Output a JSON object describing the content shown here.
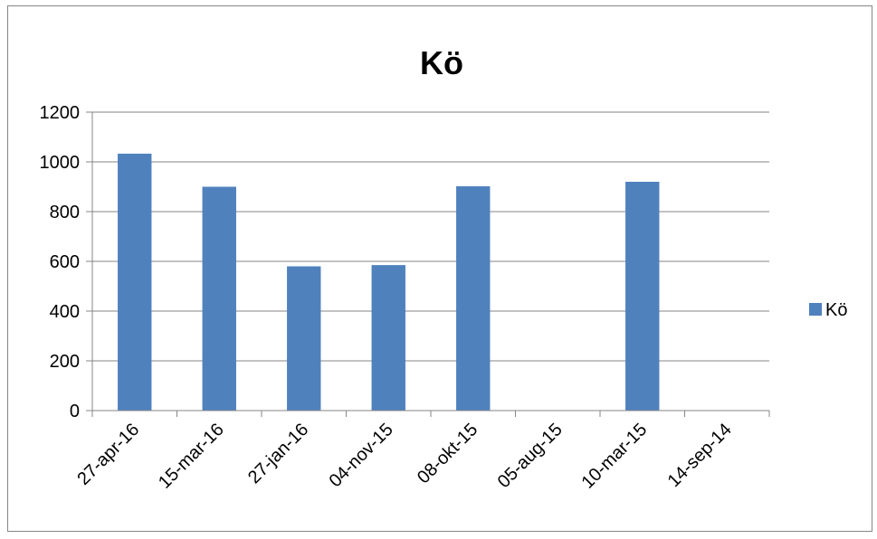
{
  "chart_data": {
    "type": "bar",
    "title": "Kö",
    "xlabel": "",
    "ylabel": "",
    "categories": [
      "27-apr-16",
      "15-mar-16",
      "27-jan-16",
      "04-nov-15",
      "08-okt-15",
      "05-aug-15",
      "10-mar-15",
      "14-sep-14"
    ],
    "series": [
      {
        "name": "Kö",
        "values": [
          1033,
          900,
          580,
          585,
          902,
          0,
          920,
          0
        ],
        "color": "#4F81BD"
      }
    ],
    "ylim": [
      0,
      1200
    ],
    "yticks": [
      "0",
      "200",
      "400",
      "600",
      "800",
      "1000",
      "1200"
    ],
    "grid": true,
    "legend_position": "right"
  }
}
